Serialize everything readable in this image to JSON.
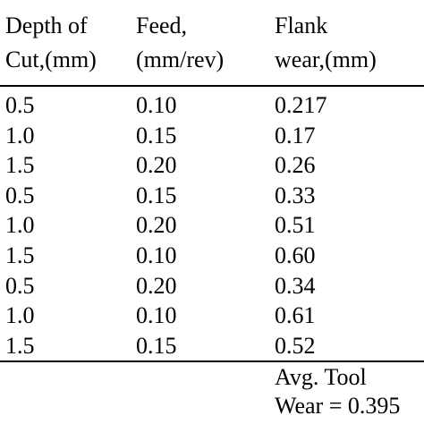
{
  "table": {
    "headers": [
      [
        "Depth of",
        "Cut,(mm)"
      ],
      [
        "Feed,",
        "(mm/rev)"
      ],
      [
        "Flank",
        "wear,(mm)"
      ]
    ],
    "rows": [
      [
        "0.5",
        "0.10",
        "0.217"
      ],
      [
        "1.0",
        "0.15",
        "0.17"
      ],
      [
        "1.5",
        "0.20",
        "0.26"
      ],
      [
        "0.5",
        "0.15",
        "0.33"
      ],
      [
        "1.0",
        "0.20",
        "0.51"
      ],
      [
        "1.5",
        "0.10",
        "0.60"
      ],
      [
        "0.5",
        "0.20",
        "0.34"
      ],
      [
        "1.0",
        "0.10",
        "0.61"
      ],
      [
        "1.5",
        "0.15",
        "0.52"
      ]
    ],
    "footer": [
      "Avg. Tool",
      "Wear = 0.395"
    ]
  }
}
